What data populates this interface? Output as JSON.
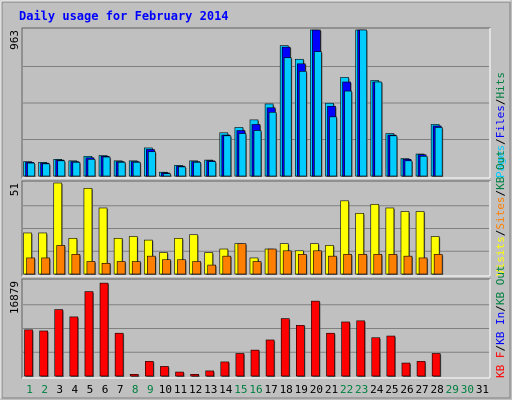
{
  "chart_data": {
    "type": "bar",
    "title": "Daily usage for February 2014",
    "colors": {
      "background": "#c0c0c0",
      "plot": "#c0c0c0",
      "grid": "#808080",
      "border": "#707070",
      "title": "#0000ff",
      "hits": "#00ccff",
      "files": "#0000ff",
      "pages": "#00ccff",
      "hits_front": "#33c0ff",
      "visits": "#ffff00",
      "sites": "#ff8000",
      "kbytes": "#ff0000",
      "weekday_label": "#000000",
      "weekend_label": "#008040"
    },
    "x": {
      "labels": [
        "1",
        "2",
        "3",
        "4",
        "5",
        "6",
        "7",
        "8",
        "9",
        "10",
        "11",
        "12",
        "13",
        "14",
        "15",
        "16",
        "17",
        "18",
        "19",
        "20",
        "21",
        "22",
        "23",
        "24",
        "25",
        "26",
        "27",
        "28",
        "29",
        "30",
        "31"
      ],
      "weekend": [
        1,
        2,
        8,
        9,
        15,
        16,
        22,
        23,
        29,
        30
      ]
    },
    "panels": [
      {
        "id": "hits-files-pages",
        "ymax_label": "963",
        "ylim": [
          0,
          963
        ],
        "side_label": [
          {
            "text": "Pages",
            "color": "#00ccff"
          },
          {
            "text": "/",
            "color": "#000000"
          },
          {
            "text": "Files",
            "color": "#0000ff"
          },
          {
            "text": "/",
            "color": "#000000"
          },
          {
            "text": "Hits",
            "color": "#008040"
          }
        ],
        "series": [
          {
            "key": "hits",
            "values": [
              95,
              90,
              110,
              100,
              130,
              135,
              100,
              100,
              185,
              25,
              70,
              100,
              105,
              285,
              320,
              370,
              475,
              860,
              770,
              963,
              480,
              650,
              963,
              630,
              280,
              115,
              145,
              340,
              0,
              0,
              0
            ]
          },
          {
            "key": "files",
            "values": [
              90,
              85,
              105,
              95,
              120,
              130,
              95,
              95,
              175,
              20,
              65,
              95,
              100,
              270,
              300,
              340,
              450,
              850,
              740,
              963,
              460,
              620,
              963,
              620,
              270,
              110,
              140,
              330,
              0,
              0,
              0
            ]
          },
          {
            "key": "pages",
            "values": [
              85,
              80,
              100,
              90,
              110,
              125,
              90,
              90,
              160,
              15,
              60,
              90,
              95,
              265,
              280,
              300,
              420,
              780,
              690,
              820,
              390,
              560,
              963,
              620,
              265,
              100,
              130,
              320,
              0,
              0,
              0
            ]
          }
        ]
      },
      {
        "id": "visits-sites",
        "ymax_label": "51",
        "ylim": [
          0,
          51
        ],
        "side_label": [
          {
            "text": "Visits",
            "color": "#ffff00"
          },
          {
            "text": "/",
            "color": "#000000"
          },
          {
            "text": "Sites",
            "color": "#ff8000"
          },
          {
            "text": "/",
            "color": "#000000"
          },
          {
            "text": "KB Out",
            "color": "#008040"
          }
        ],
        "series": [
          {
            "key": "visits",
            "values": [
              23,
              23,
              51,
              20,
              48,
              37,
              20,
              21,
              19,
              12,
              20,
              22,
              12,
              14,
              17,
              9,
              14,
              17,
              13,
              17,
              16,
              41,
              34,
              39,
              37,
              35,
              35,
              21,
              0,
              0,
              0
            ]
          },
          {
            "key": "sites",
            "values": [
              9,
              9,
              16,
              11,
              7,
              6,
              7,
              7,
              10,
              8,
              8,
              7,
              5,
              10,
              17,
              7,
              14,
              13,
              11,
              13,
              10,
              11,
              11,
              11,
              11,
              10,
              9,
              11,
              0,
              0,
              0
            ]
          }
        ]
      },
      {
        "id": "kbytes",
        "ymax_label": "16879",
        "ylim": [
          0,
          16879
        ],
        "side_label": [
          {
            "text": "KB F",
            "color": "#ff0000"
          },
          {
            "text": "/",
            "color": "#000000"
          },
          {
            "text": "KB In",
            "color": "#0000ff"
          },
          {
            "text": "/",
            "color": "#000000"
          },
          {
            "text": "KB Out",
            "color": "#008040"
          }
        ],
        "series": [
          {
            "key": "kbytes",
            "values": [
              8200,
              8000,
              11800,
              10500,
              15000,
              16500,
              7600,
              300,
              2600,
              1700,
              700,
              300,
              900,
              2500,
              4000,
              4600,
              6400,
              10200,
              9000,
              13300,
              7600,
              9600,
              9800,
              6800,
              7100,
              2300,
              2600,
              4000,
              0,
              0,
              0
            ]
          }
        ]
      }
    ]
  }
}
